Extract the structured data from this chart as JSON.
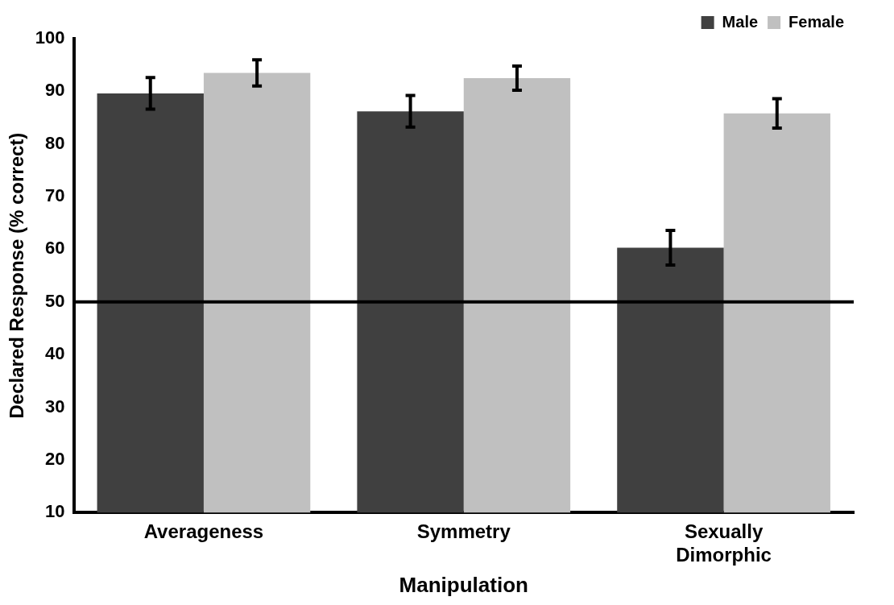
{
  "chart_data": {
    "type": "bar",
    "xlabel": "Manipulation",
    "ylabel": "Declared Response (% correct)",
    "categories": [
      "Averageness",
      "Symmetry",
      "Sexually Dimorphic"
    ],
    "series": [
      {
        "name": "Male",
        "color": "#404040",
        "values": [
          89.6,
          86.2,
          60.3
        ],
        "errors": [
          3,
          3,
          3.3
        ]
      },
      {
        "name": "Female",
        "color": "#c0c0c0",
        "values": [
          93.5,
          92.5,
          85.8
        ],
        "errors": [
          2.5,
          2.3,
          2.8
        ]
      }
    ],
    "ylim": [
      10,
      100
    ],
    "yticks": [
      10,
      20,
      30,
      40,
      50,
      60,
      70,
      80,
      90,
      100
    ],
    "ref_lines": [
      {
        "axis": "y",
        "value": 50,
        "color": "#000000"
      }
    ],
    "grid": false,
    "legend": "top right"
  }
}
